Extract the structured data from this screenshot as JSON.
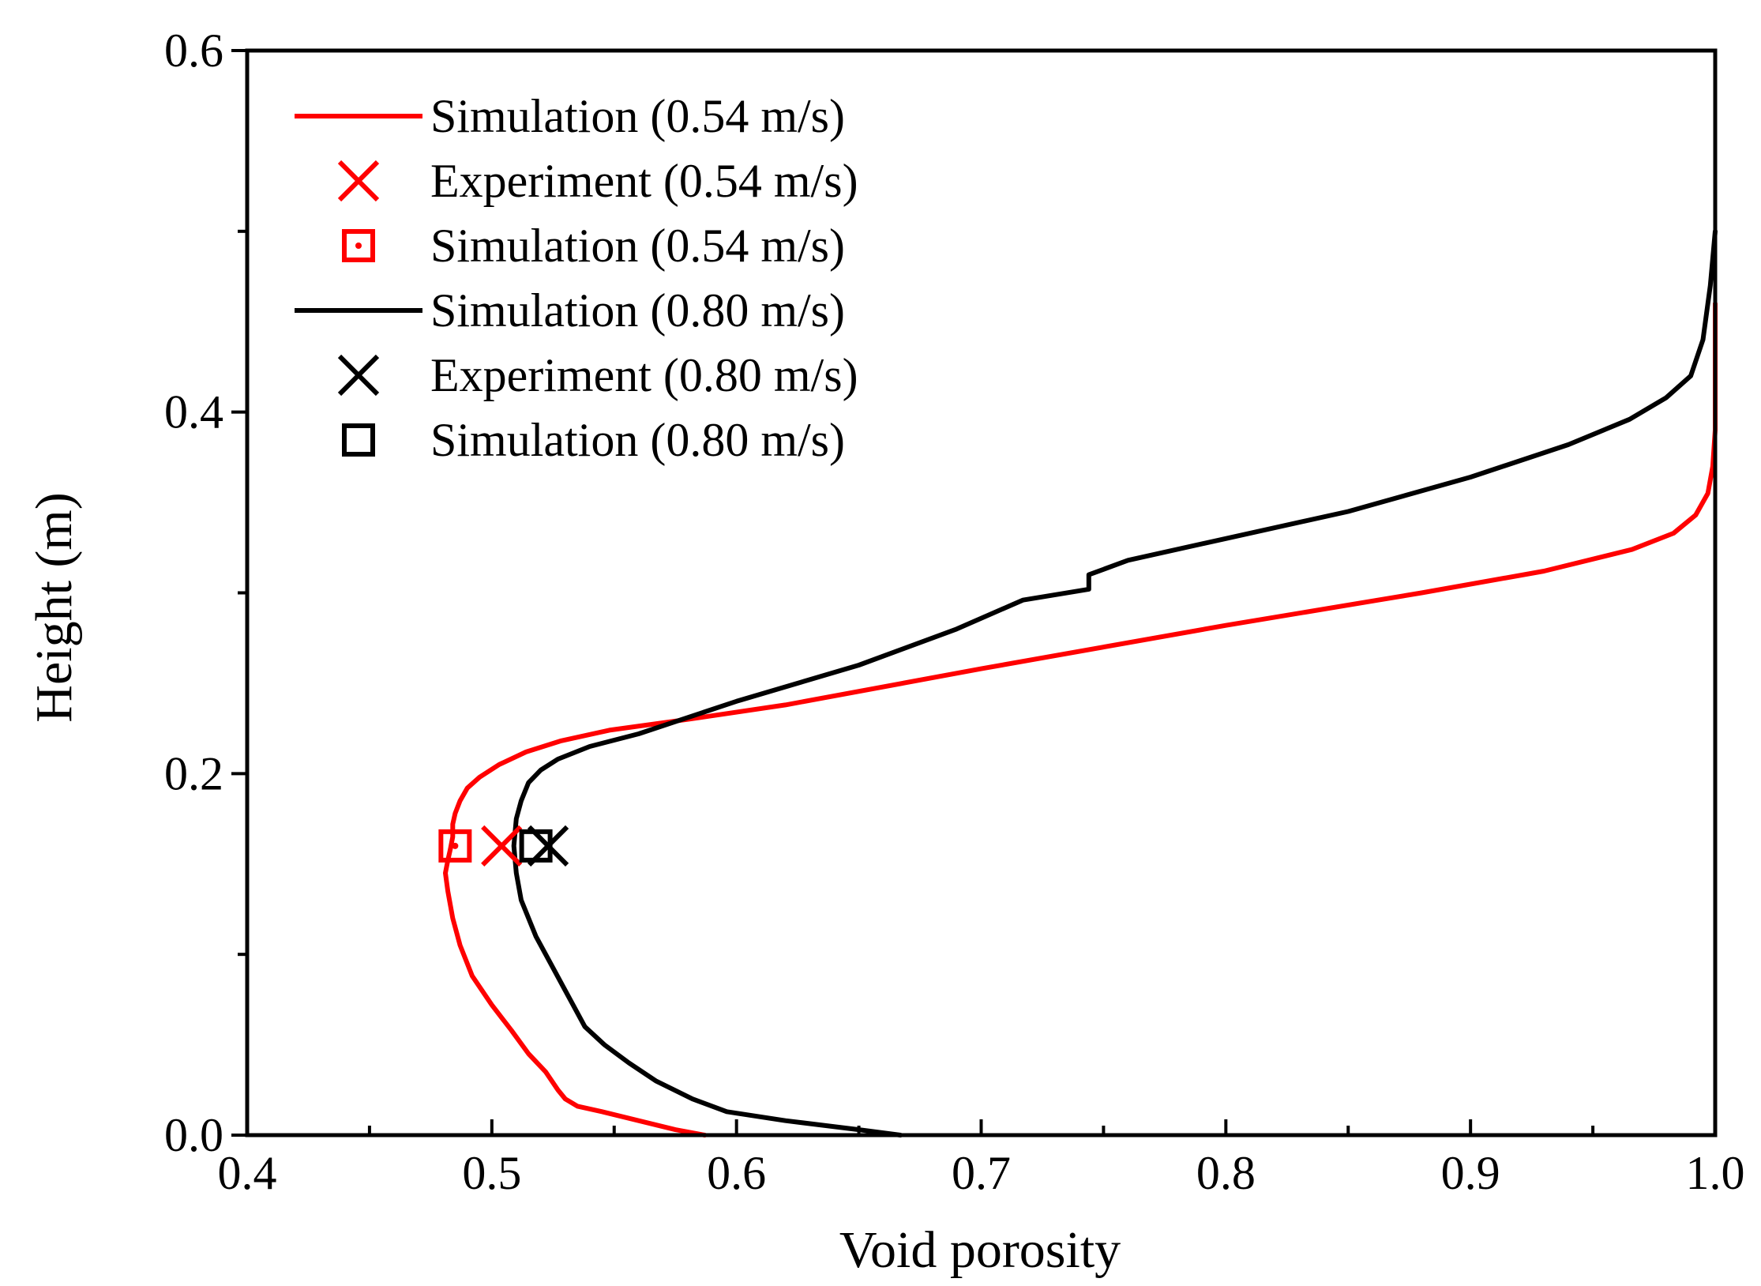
{
  "chart_data": {
    "type": "line",
    "title": "",
    "xlabel": "Void porosity",
    "ylabel": "Height (m)",
    "xlim": [
      0.4,
      1.0
    ],
    "ylim": [
      0.0,
      0.6
    ],
    "x_ticks": [
      "0.4",
      "0.5",
      "0.6",
      "0.7",
      "0.8",
      "0.9",
      "1.0"
    ],
    "y_ticks": [
      "0.0",
      "0.2",
      "0.4",
      "0.6"
    ],
    "legend_position": "top-left",
    "series": [
      {
        "name": "Simulation (0.54 m/s)",
        "kind": "line",
        "color": "#ff0000",
        "x": [
          0.587,
          0.575,
          0.56,
          0.545,
          0.535,
          0.53,
          0.527,
          0.522,
          0.515,
          0.508,
          0.5,
          0.492,
          0.487,
          0.484,
          0.482,
          0.481,
          0.482,
          0.483,
          0.484,
          0.484,
          0.485,
          0.487,
          0.49,
          0.495,
          0.503,
          0.514,
          0.528,
          0.548,
          0.58,
          0.62,
          0.7,
          0.8,
          0.88,
          0.93,
          0.966,
          0.983,
          0.992,
          0.997,
          0.999,
          1.0,
          1.0,
          1.0
        ],
        "y": [
          0.0,
          0.003,
          0.008,
          0.013,
          0.016,
          0.02,
          0.025,
          0.035,
          0.045,
          0.058,
          0.072,
          0.088,
          0.105,
          0.12,
          0.135,
          0.145,
          0.152,
          0.158,
          0.165,
          0.172,
          0.178,
          0.185,
          0.192,
          0.198,
          0.205,
          0.212,
          0.218,
          0.224,
          0.23,
          0.238,
          0.258,
          0.282,
          0.3,
          0.312,
          0.324,
          0.333,
          0.343,
          0.355,
          0.37,
          0.39,
          0.42,
          0.46
        ]
      },
      {
        "name": "Experiment (0.54 m/s)",
        "kind": "marker-x",
        "color": "#ff0000",
        "x": [
          0.504
        ],
        "y": [
          0.16
        ]
      },
      {
        "name": "Simulation (0.54 m/s)",
        "kind": "marker-square-dot",
        "color": "#ff0000",
        "x": [
          0.485
        ],
        "y": [
          0.16
        ]
      },
      {
        "name": "Simulation (0.80 m/s)",
        "kind": "line",
        "color": "#000000",
        "x": [
          0.667,
          0.65,
          0.62,
          0.596,
          0.582,
          0.567,
          0.556,
          0.546,
          0.538,
          0.53,
          0.524,
          0.518,
          0.512,
          0.51,
          0.509,
          0.51,
          0.512,
          0.515,
          0.52,
          0.527,
          0.54,
          0.56,
          0.6,
          0.65,
          0.69,
          0.717,
          0.744,
          0.744,
          0.76,
          0.8,
          0.85,
          0.9,
          0.94,
          0.965,
          0.98,
          0.99,
          0.995,
          0.998,
          1.0
        ],
        "y": [
          0.0,
          0.003,
          0.008,
          0.013,
          0.02,
          0.03,
          0.04,
          0.05,
          0.06,
          0.08,
          0.095,
          0.11,
          0.13,
          0.145,
          0.16,
          0.175,
          0.185,
          0.195,
          0.202,
          0.208,
          0.215,
          0.222,
          0.24,
          0.26,
          0.28,
          0.296,
          0.302,
          0.31,
          0.318,
          0.33,
          0.345,
          0.364,
          0.382,
          0.396,
          0.408,
          0.42,
          0.44,
          0.47,
          0.5
        ]
      },
      {
        "name": "Experiment (0.80 m/s)",
        "kind": "marker-x",
        "color": "#000000",
        "x": [
          0.523
        ],
        "y": [
          0.16
        ]
      },
      {
        "name": "Simulation (0.80 m/s)",
        "kind": "marker-square",
        "color": "#000000",
        "x": [
          0.518
        ],
        "y": [
          0.16
        ]
      }
    ]
  }
}
